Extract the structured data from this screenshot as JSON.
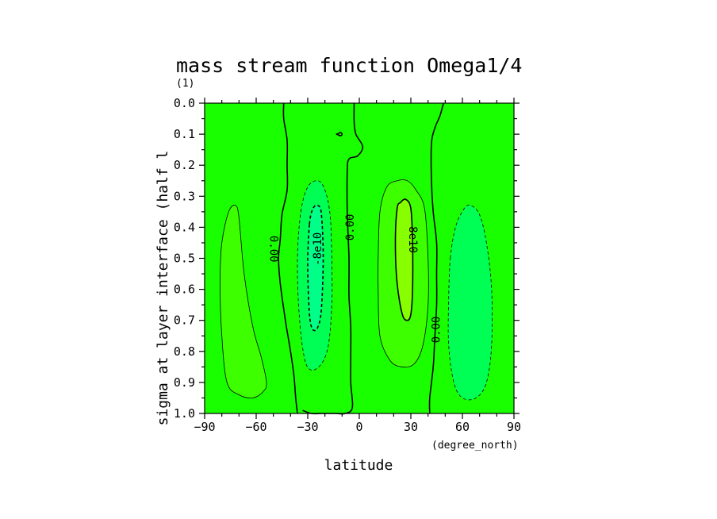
{
  "chart_data": {
    "type": "contour",
    "title": "mass stream function Omega1/4",
    "units": "(1)",
    "xlabel": "latitude",
    "xunits": "(degree_north)",
    "ylabel": "sigma at layer interface (half l",
    "xlim": [
      -90,
      90
    ],
    "ylim": [
      1.0,
      0.0
    ],
    "xticks": [
      -90,
      -60,
      -30,
      0,
      30,
      60,
      90
    ],
    "xtick_labels": [
      "−90",
      "−60",
      "−30",
      "0",
      "30",
      "60",
      "90"
    ],
    "yticks": [
      0.0,
      0.1,
      0.2,
      0.3,
      0.4,
      0.5,
      0.6,
      0.7,
      0.8,
      0.9,
      1.0
    ],
    "ytick_labels": [
      "0.0",
      "0.1",
      "0.2",
      "0.3",
      "0.4",
      "0.5",
      "0.6",
      "0.7",
      "0.8",
      "0.9",
      "1.0"
    ],
    "colors": {
      "background_fill": "#1aff00",
      "positive_weak_fill": "#3dff00",
      "positive_strong_fill": "#88ff00",
      "negative_weak_fill": "#00ff55",
      "negative_strong_fill": "#00ff88"
    },
    "contour_labels": [
      {
        "text": "0.00",
        "lat": -50,
        "sigma": 0.47,
        "rotate": 90
      },
      {
        "text": "-8e10",
        "lat": -24,
        "sigma": 0.47,
        "rotate": -90
      },
      {
        "text": "0.00",
        "lat": -5,
        "sigma": 0.4,
        "rotate": -90
      },
      {
        "text": "8e10",
        "lat": 31,
        "sigma": 0.44,
        "rotate": 90
      },
      {
        "text": "0.00",
        "lat": 45,
        "sigma": 0.73,
        "rotate": -90
      }
    ],
    "regions": [
      {
        "name": "negative-weak-cell-south",
        "fill": "negative_weak_fill",
        "dashed": true,
        "points": [
          [
            -34,
            0.35
          ],
          [
            -30,
            0.27
          ],
          [
            -24,
            0.25
          ],
          [
            -20,
            0.28
          ],
          [
            -17,
            0.36
          ],
          [
            -16,
            0.5
          ],
          [
            -16,
            0.65
          ],
          [
            -18,
            0.78
          ],
          [
            -22,
            0.84
          ],
          [
            -28,
            0.86
          ],
          [
            -32,
            0.82
          ],
          [
            -35,
            0.68
          ],
          [
            -36,
            0.5
          ]
        ]
      },
      {
        "name": "negative-strong-cell-south",
        "fill": "negative_strong_fill",
        "dashed": true,
        "points": [
          [
            -29,
            0.39
          ],
          [
            -27,
            0.34
          ],
          [
            -24,
            0.33
          ],
          [
            -22,
            0.36
          ],
          [
            -21,
            0.5
          ],
          [
            -22,
            0.66
          ],
          [
            -24,
            0.72
          ],
          [
            -27,
            0.73
          ],
          [
            -29,
            0.68
          ],
          [
            -30,
            0.52
          ]
        ]
      },
      {
        "name": "positive-weak-cell-south",
        "fill": "positive_weak_fill",
        "dashed": false,
        "points": [
          [
            -80,
            0.45
          ],
          [
            -76,
            0.35
          ],
          [
            -72,
            0.33
          ],
          [
            -70,
            0.37
          ],
          [
            -67,
            0.55
          ],
          [
            -62,
            0.72
          ],
          [
            -57,
            0.82
          ],
          [
            -54,
            0.9
          ],
          [
            -56,
            0.93
          ],
          [
            -62,
            0.95
          ],
          [
            -70,
            0.94
          ],
          [
            -77,
            0.9
          ],
          [
            -80,
            0.75
          ],
          [
            -81,
            0.58
          ]
        ]
      },
      {
        "name": "positive-weak-cell-north",
        "fill": "positive_weak_fill",
        "dashed": false,
        "points": [
          [
            11,
            0.5
          ],
          [
            12,
            0.35
          ],
          [
            16,
            0.27
          ],
          [
            22,
            0.25
          ],
          [
            28,
            0.25
          ],
          [
            33,
            0.28
          ],
          [
            38,
            0.34
          ],
          [
            40,
            0.5
          ],
          [
            40,
            0.65
          ],
          [
            37,
            0.78
          ],
          [
            32,
            0.84
          ],
          [
            25,
            0.85
          ],
          [
            18,
            0.83
          ],
          [
            12,
            0.75
          ],
          [
            11,
            0.6
          ]
        ]
      },
      {
        "name": "positive-strong-cell-north",
        "fill": "positive_strong_fill",
        "dashed": false,
        "points": [
          [
            22,
            0.34
          ],
          [
            24,
            0.32
          ],
          [
            27,
            0.31
          ],
          [
            30,
            0.34
          ],
          [
            31,
            0.45
          ],
          [
            31,
            0.6
          ],
          [
            30,
            0.68
          ],
          [
            28,
            0.7
          ],
          [
            25,
            0.68
          ],
          [
            22,
            0.58
          ],
          [
            21,
            0.45
          ]
        ]
      },
      {
        "name": "negative-weak-cell-north",
        "fill": "negative_weak_fill",
        "dashed": true,
        "points": [
          [
            53,
            0.5
          ],
          [
            56,
            0.4
          ],
          [
            61,
            0.34
          ],
          [
            65,
            0.33
          ],
          [
            70,
            0.36
          ],
          [
            74,
            0.45
          ],
          [
            77,
            0.6
          ],
          [
            77,
            0.78
          ],
          [
            74,
            0.9
          ],
          [
            68,
            0.95
          ],
          [
            60,
            0.95
          ],
          [
            55,
            0.9
          ],
          [
            52,
            0.78
          ],
          [
            52,
            0.63
          ]
        ]
      }
    ],
    "zero_lines": [
      {
        "name": "zero-contour-southern",
        "points": [
          [
            -44,
            0.0
          ],
          [
            -44,
            0.05
          ],
          [
            -42,
            0.12
          ],
          [
            -42,
            0.2
          ],
          [
            -42,
            0.28
          ],
          [
            -45,
            0.36
          ],
          [
            -46,
            0.44
          ],
          [
            -47,
            0.5
          ],
          [
            -46,
            0.58
          ],
          [
            -43,
            0.7
          ],
          [
            -40,
            0.8
          ],
          [
            -38,
            0.88
          ],
          [
            -37,
            0.95
          ],
          [
            -36,
            1.0
          ]
        ]
      },
      {
        "name": "zero-contour-equatorial",
        "points": [
          [
            -3,
            0.0
          ],
          [
            -3,
            0.06
          ],
          [
            -2,
            0.1
          ],
          [
            2,
            0.14
          ],
          [
            -1,
            0.17
          ],
          [
            -6,
            0.18
          ],
          [
            -7,
            0.22
          ],
          [
            -7,
            0.35
          ],
          [
            -6,
            0.5
          ],
          [
            -6,
            0.62
          ],
          [
            -5,
            0.72
          ],
          [
            -5,
            0.82
          ],
          [
            -5,
            0.9
          ],
          [
            -4,
            0.98
          ],
          [
            -8,
            1.0
          ],
          [
            -14,
            1.0
          ],
          [
            -22,
            1.0
          ],
          [
            -28,
            1.0
          ],
          [
            -33,
            0.99
          ]
        ]
      },
      {
        "name": "zero-contour-northern",
        "points": [
          [
            49,
            0.0
          ],
          [
            47,
            0.04
          ],
          [
            44,
            0.08
          ],
          [
            42,
            0.13
          ],
          [
            42,
            0.25
          ],
          [
            43,
            0.35
          ],
          [
            45,
            0.45
          ],
          [
            45,
            0.55
          ],
          [
            45,
            0.65
          ],
          [
            44,
            0.75
          ],
          [
            43,
            0.85
          ],
          [
            41,
            0.95
          ],
          [
            41,
            1.0
          ]
        ]
      },
      {
        "name": "zero-contour-small-loop",
        "points": [
          [
            -13,
            0.1
          ],
          [
            -11,
            0.095
          ],
          [
            -10,
            0.1
          ],
          [
            -11,
            0.105
          ],
          [
            -13,
            0.1
          ]
        ]
      }
    ]
  }
}
